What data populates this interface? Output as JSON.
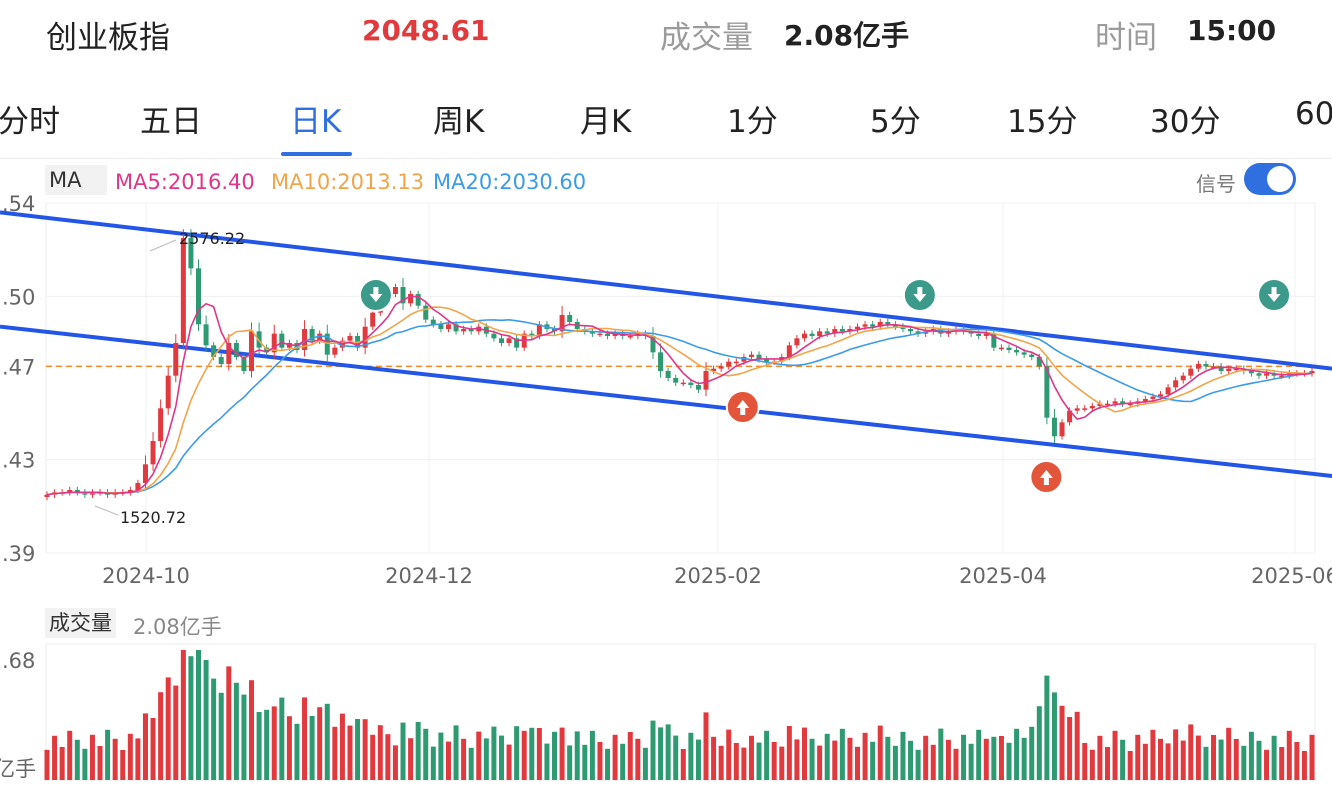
{
  "header": {
    "name": "创业板指",
    "price": "2048.61",
    "volume_label": "成交量",
    "volume_value": "2.08亿手",
    "time_label": "时间",
    "time_value": "15:00"
  },
  "tabs": [
    "分时",
    "五日",
    "日K",
    "周K",
    "月K",
    "1分",
    "5分",
    "15分",
    "30分",
    "60"
  ],
  "active_tab": "日K",
  "ma_bar": {
    "label": "MA",
    "ma5": "MA5:2016.40",
    "ma10": "MA10:2013.13",
    "ma20": "MA20:2030.60",
    "colors": {
      "ma5": "#e0368a",
      "ma10": "#f0a54a",
      "ma20": "#3c9be8"
    }
  },
  "signal": {
    "label": "信号",
    "enabled": true
  },
  "volume_panel": {
    "label": "成交量",
    "value": "2.08亿手",
    "tick_top": ".68",
    "tick_bottom": "亿手"
  },
  "colors": {
    "up": "#e0393e",
    "down": "#2e9a72",
    "channel": "#2456e6",
    "dashed": "#f08a2b",
    "accent": "#2f6fe0"
  },
  "chart_data": {
    "type": "candlestick",
    "y_ticks": [
      ".54",
      ".50",
      ".47",
      ".43",
      ".39"
    ],
    "y_tick_values": [
      2540,
      2500,
      2470,
      2430,
      2390
    ],
    "ylim": [
      2390,
      2540
    ],
    "x_labels": [
      "2024-10",
      "2024-12",
      "2025-02",
      "2025-04",
      "2025-06"
    ],
    "annotations": {
      "high": "2576.22",
      "low": "1520.72"
    },
    "last_price_line": 2470,
    "channel_lines": [
      {
        "from": [
          0,
          2536
        ],
        "to": [
          1,
          2469
        ]
      },
      {
        "from": [
          0,
          2487
        ],
        "to": [
          1,
          2423
        ]
      }
    ],
    "signals": [
      {
        "type": "sell",
        "position": 0.26
      },
      {
        "type": "buy",
        "position": 0.55
      },
      {
        "type": "sell",
        "position": 0.69
      },
      {
        "type": "buy",
        "position": 0.79
      },
      {
        "type": "sell",
        "position": 0.97
      }
    ],
    "closes": [
      2415,
      2416,
      2416,
      2417,
      2416,
      2415,
      2416,
      2416,
      2415,
      2416,
      2416,
      2417,
      2420,
      2428,
      2438,
      2452,
      2466,
      2480,
      2525,
      2512,
      2488,
      2479,
      2474,
      2471,
      2480,
      2474,
      2468,
      2485,
      2478,
      2476,
      2484,
      2478,
      2480,
      2477,
      2486,
      2481,
      2484,
      2475,
      2478,
      2481,
      2483,
      2478,
      2487,
      2493,
      2497,
      2501,
      2504,
      2497,
      2501,
      2496,
      2490,
      2488,
      2486,
      2488,
      2485,
      2486,
      2485,
      2487,
      2484,
      2482,
      2480,
      2482,
      2478,
      2484,
      2483,
      2488,
      2486,
      2485,
      2492,
      2489,
      2486,
      2485,
      2484,
      2484,
      2483,
      2484,
      2483,
      2483,
      2484,
      2483,
      2476,
      2468,
      2465,
      2463,
      2463,
      2462,
      2460,
      2468,
      2469,
      2470,
      2472,
      2472,
      2474,
      2475,
      2473,
      2472,
      2472,
      2474,
      2479,
      2482,
      2484,
      2483,
      2485,
      2484,
      2486,
      2485,
      2486,
      2487,
      2488,
      2487,
      2489,
      2488,
      2487,
      2486,
      2485,
      2484,
      2485,
      2486,
      2484,
      2485,
      2486,
      2485,
      2484,
      2483,
      2484,
      2478,
      2478,
      2477,
      2476,
      2475,
      2474,
      2470,
      2448,
      2440,
      2446,
      2451,
      2452,
      2452,
      2453,
      2454,
      2454,
      2455,
      2454,
      2454,
      2455,
      2456,
      2457,
      2458,
      2461,
      2464,
      2466,
      2469,
      2471,
      2470,
      2470,
      2468,
      2469,
      2469,
      2468,
      2467,
      2466,
      2467,
      2466,
      2466,
      2467,
      2467,
      2467,
      2468
    ]
  }
}
